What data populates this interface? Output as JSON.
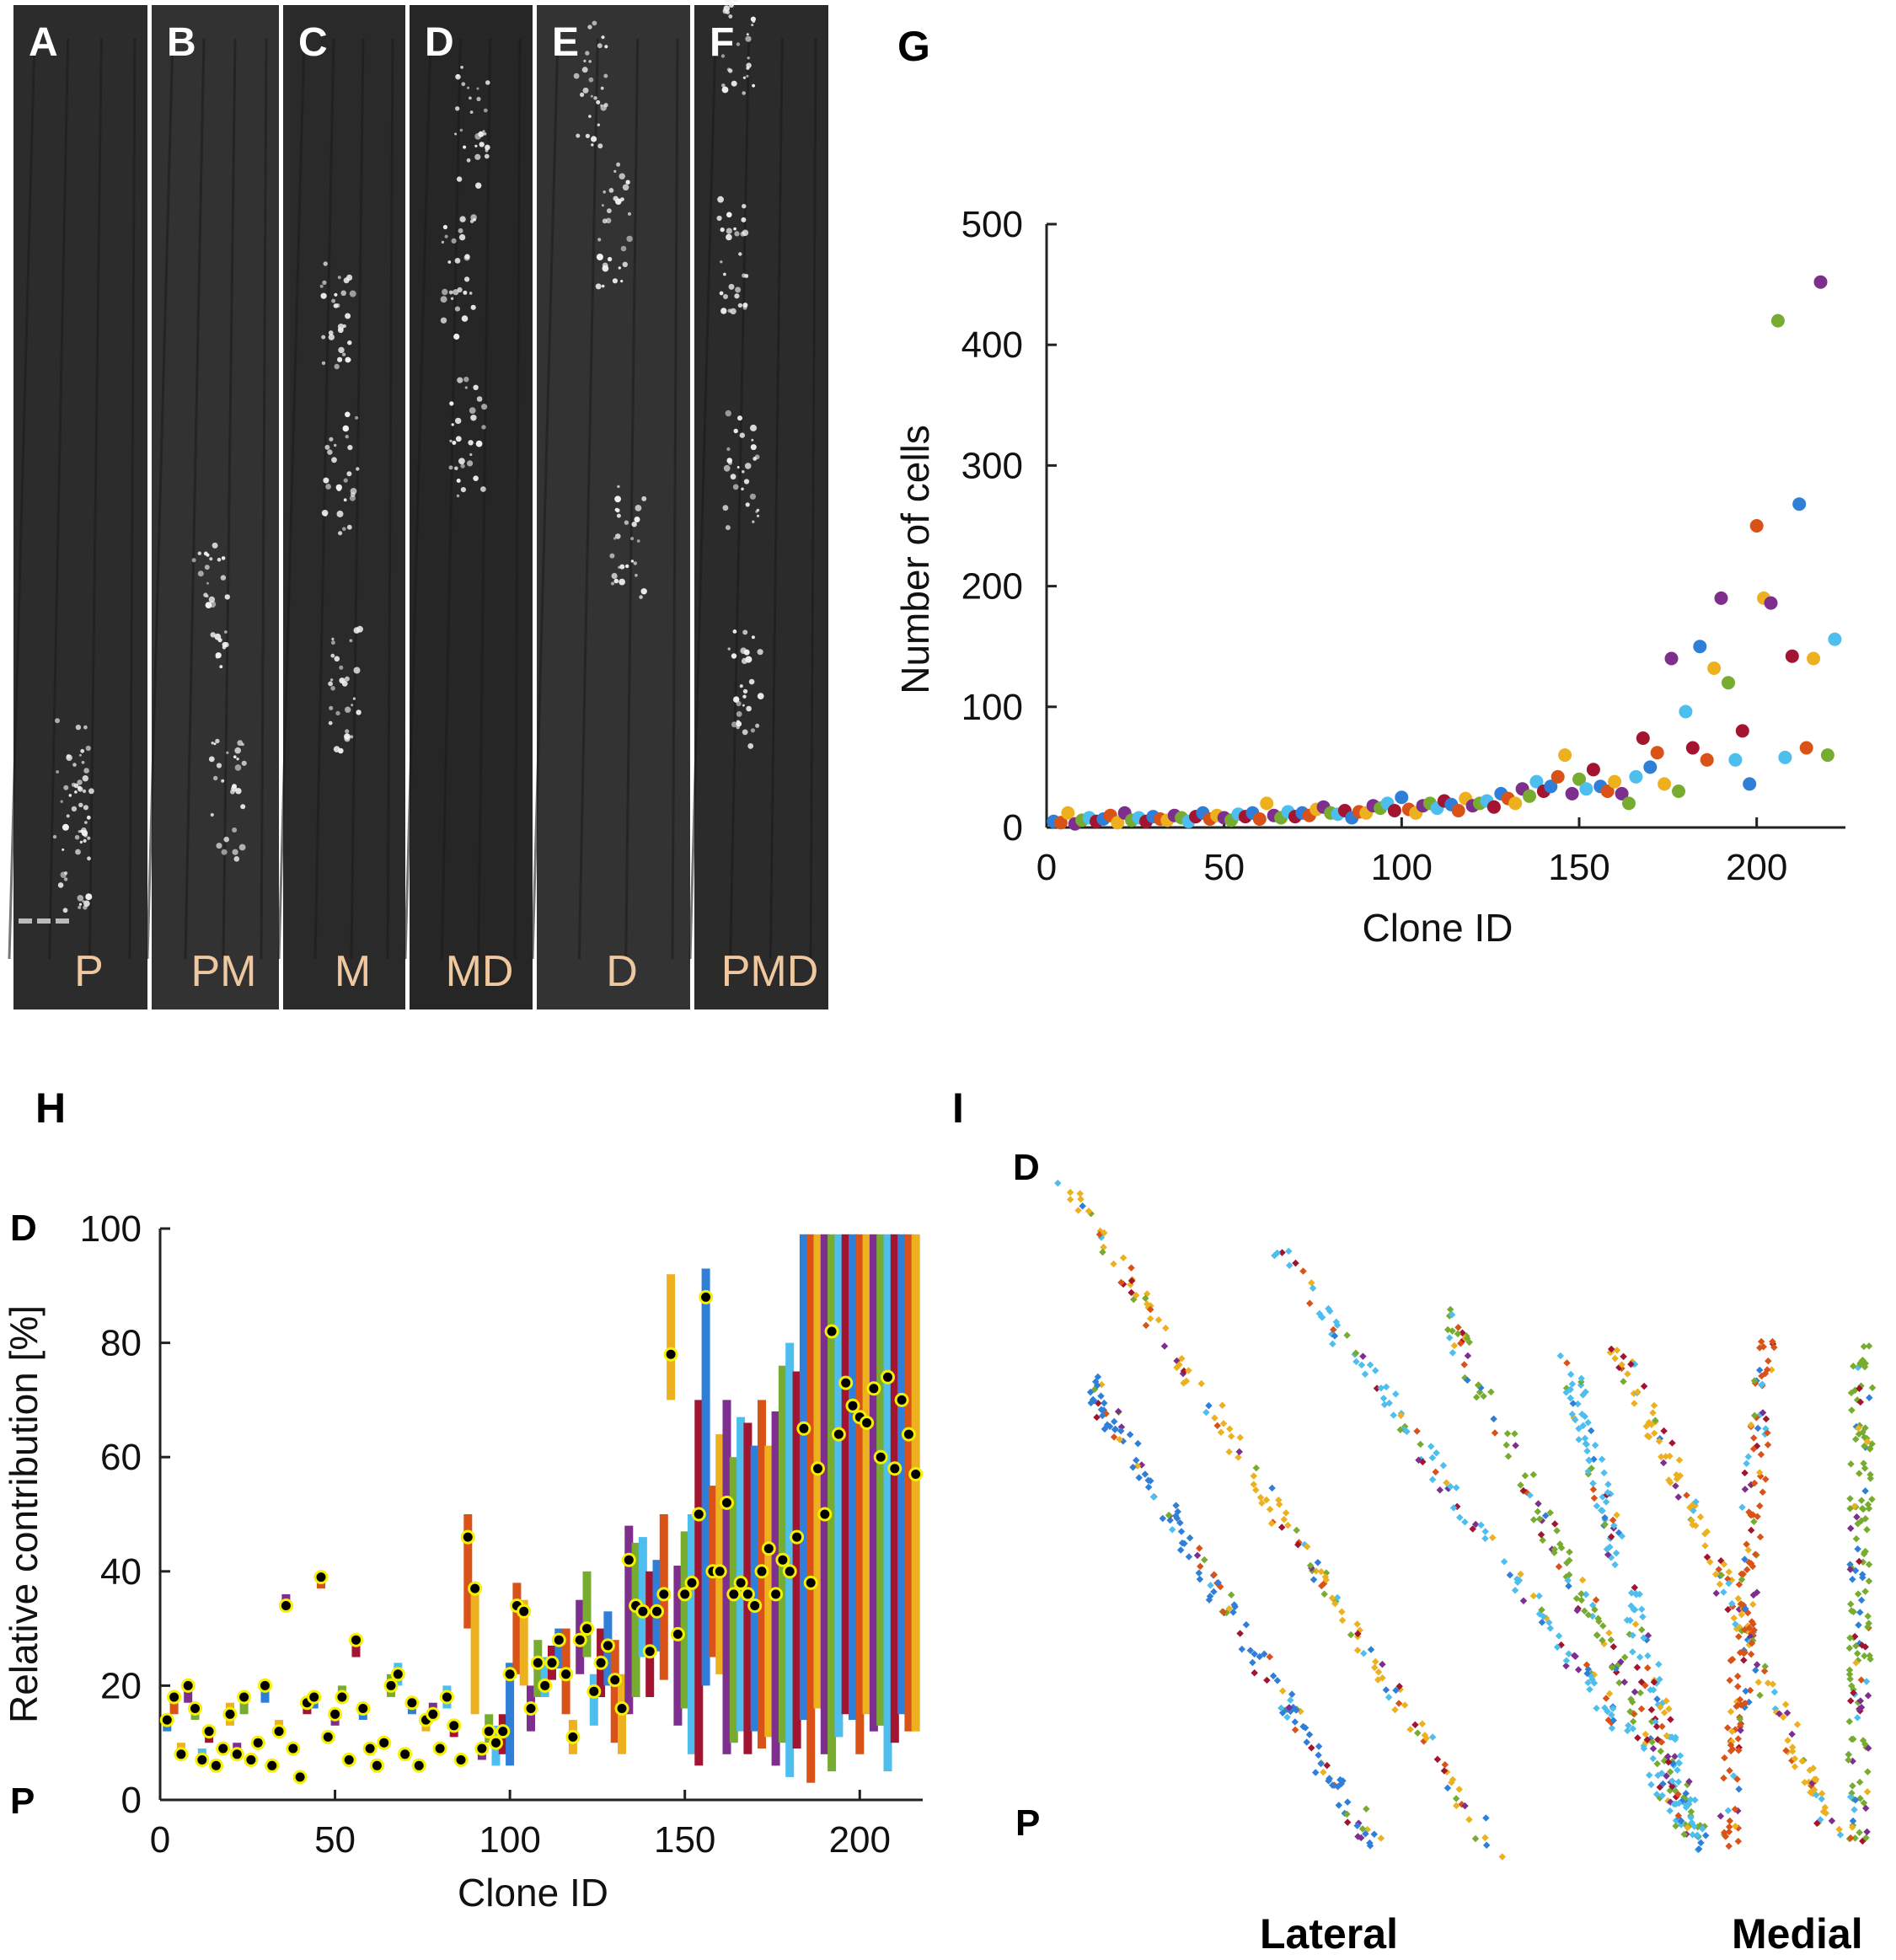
{
  "colors": [
    "#2F7ED8",
    "#D95319",
    "#EDB120",
    "#7E2F8E",
    "#77AC30",
    "#4DBEEE",
    "#A2142F"
  ],
  "panels_micro": [
    {
      "letter": "A",
      "label": "P"
    },
    {
      "letter": "B",
      "label": "PM"
    },
    {
      "letter": "C",
      "label": "M"
    },
    {
      "letter": "D",
      "label": "MD"
    },
    {
      "letter": "E",
      "label": "D"
    },
    {
      "letter": "F",
      "label": "PMD"
    }
  ],
  "panel_g": {
    "letter": "G"
  },
  "panel_h": {
    "letter": "H",
    "left_top": "D",
    "left_bottom": "P"
  },
  "panel_i": {
    "letter": "I",
    "d_label": "D",
    "p_label": "P",
    "lateral": "Lateral",
    "medial": "Medial"
  },
  "chart_data": [
    {
      "panel": "G",
      "type": "scatter",
      "xlabel": "Clone ID",
      "ylabel": "Number of cells",
      "xlim": [
        0,
        225
      ],
      "ylim": [
        0,
        500
      ],
      "xticks": [
        0,
        50,
        100,
        150,
        200
      ],
      "yticks": [
        0,
        100,
        200,
        300,
        400,
        500
      ],
      "x": [
        2,
        4,
        6,
        8,
        10,
        12,
        14,
        16,
        18,
        20,
        22,
        24,
        26,
        28,
        30,
        32,
        34,
        36,
        38,
        40,
        42,
        44,
        46,
        48,
        50,
        52,
        54,
        56,
        58,
        60,
        62,
        64,
        66,
        68,
        70,
        72,
        74,
        76,
        78,
        80,
        82,
        84,
        86,
        88,
        90,
        92,
        94,
        96,
        98,
        100,
        102,
        104,
        106,
        108,
        110,
        112,
        114,
        116,
        118,
        120,
        122,
        124,
        126,
        128,
        130,
        132,
        134,
        136,
        138,
        140,
        142,
        144,
        146,
        148,
        150,
        152,
        154,
        156,
        158,
        160,
        162,
        164,
        166,
        168,
        170,
        172,
        174,
        176,
        178,
        180,
        182,
        184,
        186,
        188,
        190,
        192,
        194,
        196,
        198,
        200,
        202,
        204,
        206,
        208,
        210,
        212,
        214,
        216,
        218,
        220,
        222
      ],
      "y": [
        5,
        4,
        12,
        3,
        6,
        8,
        5,
        7,
        10,
        4,
        12,
        6,
        8,
        5,
        9,
        7,
        6,
        10,
        8,
        5,
        9,
        12,
        7,
        10,
        8,
        6,
        11,
        9,
        12,
        7,
        20,
        10,
        8,
        13,
        9,
        12,
        10,
        15,
        17,
        12,
        11,
        14,
        8,
        13,
        12,
        18,
        16,
        20,
        14,
        25,
        15,
        12,
        18,
        20,
        16,
        22,
        19,
        14,
        24,
        18,
        20,
        22,
        17,
        28,
        24,
        20,
        32,
        26,
        38,
        30,
        34,
        42,
        60,
        28,
        40,
        32,
        48,
        34,
        30,
        38,
        28,
        20,
        42,
        74,
        50,
        62,
        36,
        140,
        30,
        96,
        66,
        150,
        56,
        132,
        190,
        120,
        56,
        80,
        36,
        250,
        190,
        186,
        420,
        58,
        142,
        268,
        66,
        140,
        452,
        60,
        156
      ],
      "colors_by_point": "cycled from colors"
    },
    {
      "panel": "H",
      "type": "range-bars with median markers",
      "xlabel": "Clone ID",
      "ylabel": "Relative contribution [%]",
      "xlim": [
        0,
        218
      ],
      "ylim": [
        0,
        100
      ],
      "xticks": [
        0,
        50,
        100,
        150,
        200
      ],
      "yticks": [
        0,
        20,
        40,
        60,
        80,
        100
      ],
      "x": [
        2,
        4,
        6,
        8,
        10,
        12,
        14,
        16,
        18,
        20,
        22,
        24,
        26,
        28,
        30,
        32,
        34,
        36,
        38,
        40,
        42,
        44,
        46,
        48,
        50,
        52,
        54,
        56,
        58,
        60,
        62,
        64,
        66,
        68,
        70,
        72,
        74,
        76,
        78,
        80,
        82,
        84,
        86,
        88,
        90,
        92,
        94,
        96,
        98,
        100,
        102,
        104,
        106,
        108,
        110,
        112,
        114,
        116,
        118,
        120,
        122,
        124,
        126,
        128,
        130,
        132,
        134,
        136,
        138,
        140,
        142,
        144,
        146,
        148,
        150,
        152,
        154,
        156,
        158,
        160,
        162,
        164,
        166,
        168,
        170,
        172,
        174,
        176,
        178,
        180,
        182,
        184,
        186,
        188,
        190,
        192,
        194,
        196,
        198,
        200,
        202,
        204,
        206,
        208,
        210,
        212,
        214,
        216
      ],
      "low": [
        12,
        15,
        8,
        17,
        14,
        6,
        10,
        5,
        8,
        13,
        7,
        15,
        6,
        9,
        17,
        5,
        11,
        33,
        8,
        3,
        15,
        16,
        37,
        10,
        13,
        17,
        6,
        25,
        14,
        8,
        5,
        9,
        18,
        20,
        7,
        15,
        5,
        12,
        14,
        8,
        16,
        11,
        6,
        30,
        15,
        7,
        10,
        6,
        8,
        6,
        22,
        20,
        12,
        18,
        18,
        21,
        23,
        15,
        8,
        22,
        25,
        13,
        18,
        20,
        10,
        8,
        15,
        18,
        25,
        18,
        26,
        21,
        70,
        13,
        16,
        8,
        6,
        20,
        25,
        22,
        8,
        10,
        12,
        8,
        12,
        9,
        11,
        6,
        10,
        4,
        9,
        14,
        3,
        16,
        8,
        5,
        11,
        15,
        14,
        8,
        15,
        12,
        13,
        5,
        10,
        15,
        12,
        12
      ],
      "high": [
        15,
        19,
        10,
        21,
        17,
        9,
        13,
        7,
        10,
        17,
        10,
        19,
        8,
        11,
        21,
        7,
        14,
        36,
        10,
        5,
        18,
        19,
        40,
        12,
        16,
        20,
        8,
        29,
        17,
        10,
        7,
        11,
        22,
        24,
        9,
        18,
        7,
        15,
        17,
        10,
        20,
        14,
        8,
        50,
        38,
        10,
        15,
        13,
        15,
        24,
        38,
        35,
        20,
        28,
        25,
        27,
        30,
        30,
        14,
        35,
        40,
        22,
        30,
        33,
        28,
        22,
        48,
        45,
        46,
        40,
        42,
        50,
        92,
        41,
        47,
        50,
        70,
        93,
        55,
        64,
        70,
        60,
        67,
        66,
        62,
        70,
        62,
        68,
        76,
        80,
        75,
        99,
        99,
        99,
        99,
        99,
        99,
        99,
        99,
        99,
        99,
        99,
        99,
        99,
        99,
        99,
        99,
        99
      ],
      "median": [
        14,
        18,
        8,
        20,
        16,
        7,
        12,
        6,
        9,
        15,
        8,
        18,
        7,
        10,
        20,
        6,
        12,
        34,
        9,
        4,
        17,
        18,
        39,
        11,
        15,
        18,
        7,
        28,
        16,
        9,
        6,
        10,
        20,
        22,
        8,
        17,
        6,
        14,
        15,
        9,
        18,
        13,
        7,
        46,
        37,
        9,
        12,
        10,
        12,
        22,
        34,
        33,
        16,
        24,
        20,
        24,
        28,
        22,
        11,
        28,
        30,
        19,
        24,
        27,
        21,
        16,
        42,
        34,
        33,
        26,
        33,
        36,
        78,
        29,
        36,
        38,
        50,
        88,
        40,
        40,
        52,
        36,
        38,
        36,
        34,
        40,
        44,
        36,
        42,
        40,
        46,
        65,
        38,
        58,
        50,
        82,
        64,
        73,
        69,
        67,
        66,
        72,
        60,
        74,
        58,
        70,
        64,
        57
      ]
    },
    {
      "panel": "I",
      "type": "scatter",
      "description_labels": {
        "top": "D",
        "bottom": "P",
        "left": "Lateral",
        "right": "Medial"
      }
    }
  ]
}
